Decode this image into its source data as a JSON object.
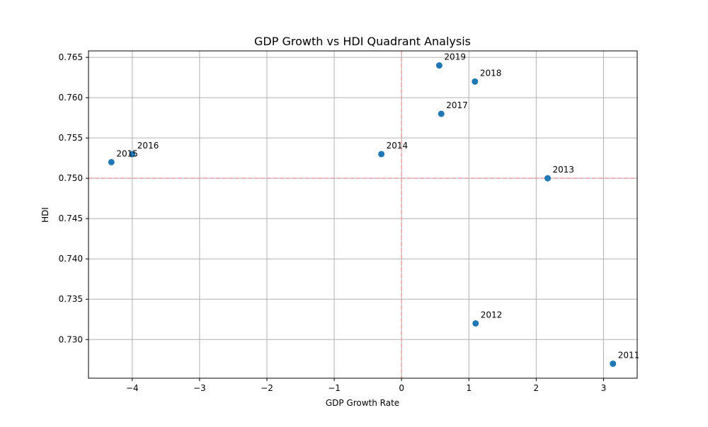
{
  "chart_data": {
    "type": "scatter",
    "title": "GDP Growth vs HDI Quadrant Analysis",
    "xlabel": "GDP Growth Rate",
    "ylabel": "HDI",
    "xlim": [
      -4.65,
      3.5
    ],
    "ylim": [
      0.7252,
      0.7658
    ],
    "grid": true,
    "x_ticks": [
      -4,
      -3,
      -2,
      -1,
      0,
      1,
      2,
      3
    ],
    "x_tick_labels": [
      "−4",
      "−3",
      "−2",
      "−1",
      "0",
      "1",
      "2",
      "3"
    ],
    "y_ticks": [
      0.73,
      0.735,
      0.74,
      0.745,
      0.75,
      0.755,
      0.76,
      0.765
    ],
    "y_tick_labels": [
      "0.730",
      "0.735",
      "0.740",
      "0.745",
      "0.750",
      "0.755",
      "0.760",
      "0.765"
    ],
    "reference_lines": {
      "x": 0,
      "y": 0.75,
      "color": "#e8a0a0",
      "style": "dashed"
    },
    "marker_color": "#1f77b4",
    "points": [
      {
        "label": "2011",
        "x": 3.14,
        "y": 0.727
      },
      {
        "label": "2012",
        "x": 1.1,
        "y": 0.732
      },
      {
        "label": "2013",
        "x": 2.17,
        "y": 0.75
      },
      {
        "label": "2014",
        "x": -0.3,
        "y": 0.753
      },
      {
        "label": "2015",
        "x": -4.31,
        "y": 0.752
      },
      {
        "label": "2016",
        "x": -4.0,
        "y": 0.753
      },
      {
        "label": "2017",
        "x": 0.59,
        "y": 0.758
      },
      {
        "label": "2018",
        "x": 1.09,
        "y": 0.762
      },
      {
        "label": "2019",
        "x": 0.56,
        "y": 0.764
      }
    ]
  }
}
